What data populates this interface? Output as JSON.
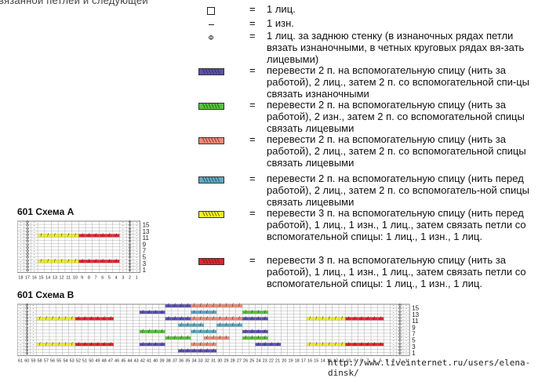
{
  "top_fragment": "вязанной петлей и следующей",
  "legend": [
    {
      "symbol": "square",
      "desc": "1 лиц."
    },
    {
      "symbol": "dash",
      "desc": "1 изн."
    },
    {
      "symbol": "phi",
      "desc": "1 лиц. за заднюю стенку (в изнаночных рядах петли вязать изнаночными, в четных круговых рядах вя-зать лицевыми)"
    },
    {
      "symbol": "swatch",
      "color": "#5a4fb2",
      "desc": "перевести 2 п. на вспомогательную спицу (нить за работой), 2 лиц., затем 2 п. со вспомогательной спи-цы связать изнаночными"
    },
    {
      "symbol": "swatch",
      "color": "#58c13a",
      "desc": "перевести 2 п. на вспомогательную спицу (нить за работой), 2 изн., затем 2 п. со вспомогательной спицы связать лицевыми"
    },
    {
      "symbol": "swatch",
      "color": "#ee8a74",
      "desc": "перевести 2 п. на вспомогательную спицу (нить за работой), 2 лиц., затем 2 п. со вспомогательной спицы связать лицевыми"
    },
    {
      "symbol": "swatch",
      "color": "#5aa9c2",
      "desc": "перевести 2 п. на вспомогательную спицу (нить перед работой), 2 лиц., затем 2 п. со вспомогатель-ной спицы связать лицевыми"
    },
    {
      "symbol": "swatch",
      "color": "#f2ee28",
      "desc": "перевести 3 п. на вспомогательную спицу (нить перед работой), 1 лиц., 1 изн., 1 лиц., затем связать петли со вспомогательной спицы: 1 лиц., 1 изн., 1 лиц."
    },
    {
      "symbol": "swatch",
      "color": "#e8222b",
      "desc": "перевести 3 п. на вспомогательную спицу (нить за работой), 1 лиц., 1 изн., 1 лиц., затем связать петли со вспомогательной спицы: 1 лиц., 1 изн., 1 лиц."
    }
  ],
  "equals": "=",
  "schema_a": {
    "title": "601 Схема А",
    "row_numbers": [
      "15",
      "13",
      "11",
      "9",
      "7",
      "5",
      "3",
      "1"
    ],
    "column_numbers": [
      "18",
      "17",
      "16",
      "15",
      "14",
      "13",
      "12",
      "11",
      "10",
      "9",
      "8",
      "7",
      "6",
      "5",
      "4",
      "3",
      "2",
      "1"
    ]
  },
  "schema_b": {
    "title": "601 Схема В",
    "row_numbers": [
      "15",
      "13",
      "11",
      "9",
      "7",
      "5",
      "3",
      "1"
    ],
    "column_numbers": [
      "61",
      "60",
      "59",
      "58",
      "57",
      "56",
      "55",
      "54",
      "53",
      "52",
      "51",
      "50",
      "49",
      "48",
      "47",
      "46",
      "45",
      "44",
      "43",
      "42",
      "41",
      "40",
      "39",
      "38",
      "37",
      "36",
      "35",
      "34",
      "33",
      "32",
      "31",
      "30",
      "29",
      "28",
      "27",
      "26",
      "25",
      "24",
      "23",
      "22",
      "21",
      "20",
      "19",
      "18",
      "17",
      "16",
      "15",
      "14",
      "13",
      "12",
      "11",
      "10",
      "9",
      "8",
      "7",
      "6",
      "5",
      "4",
      "3",
      "2",
      "1"
    ]
  },
  "cell_symbols": {
    "phi": "Ф",
    "dash": "-",
    "slash": "/",
    "backslash": "\\"
  },
  "colors": {
    "yellow": "#f2ee28",
    "red": "#e8222b",
    "purple": "#5a4fb2",
    "green": "#58c13a",
    "salmon": "#ee8a74",
    "blue": "#5aa9c2"
  },
  "watermark": "http://www.liveinternet.ru/users/elena-dinsk/"
}
